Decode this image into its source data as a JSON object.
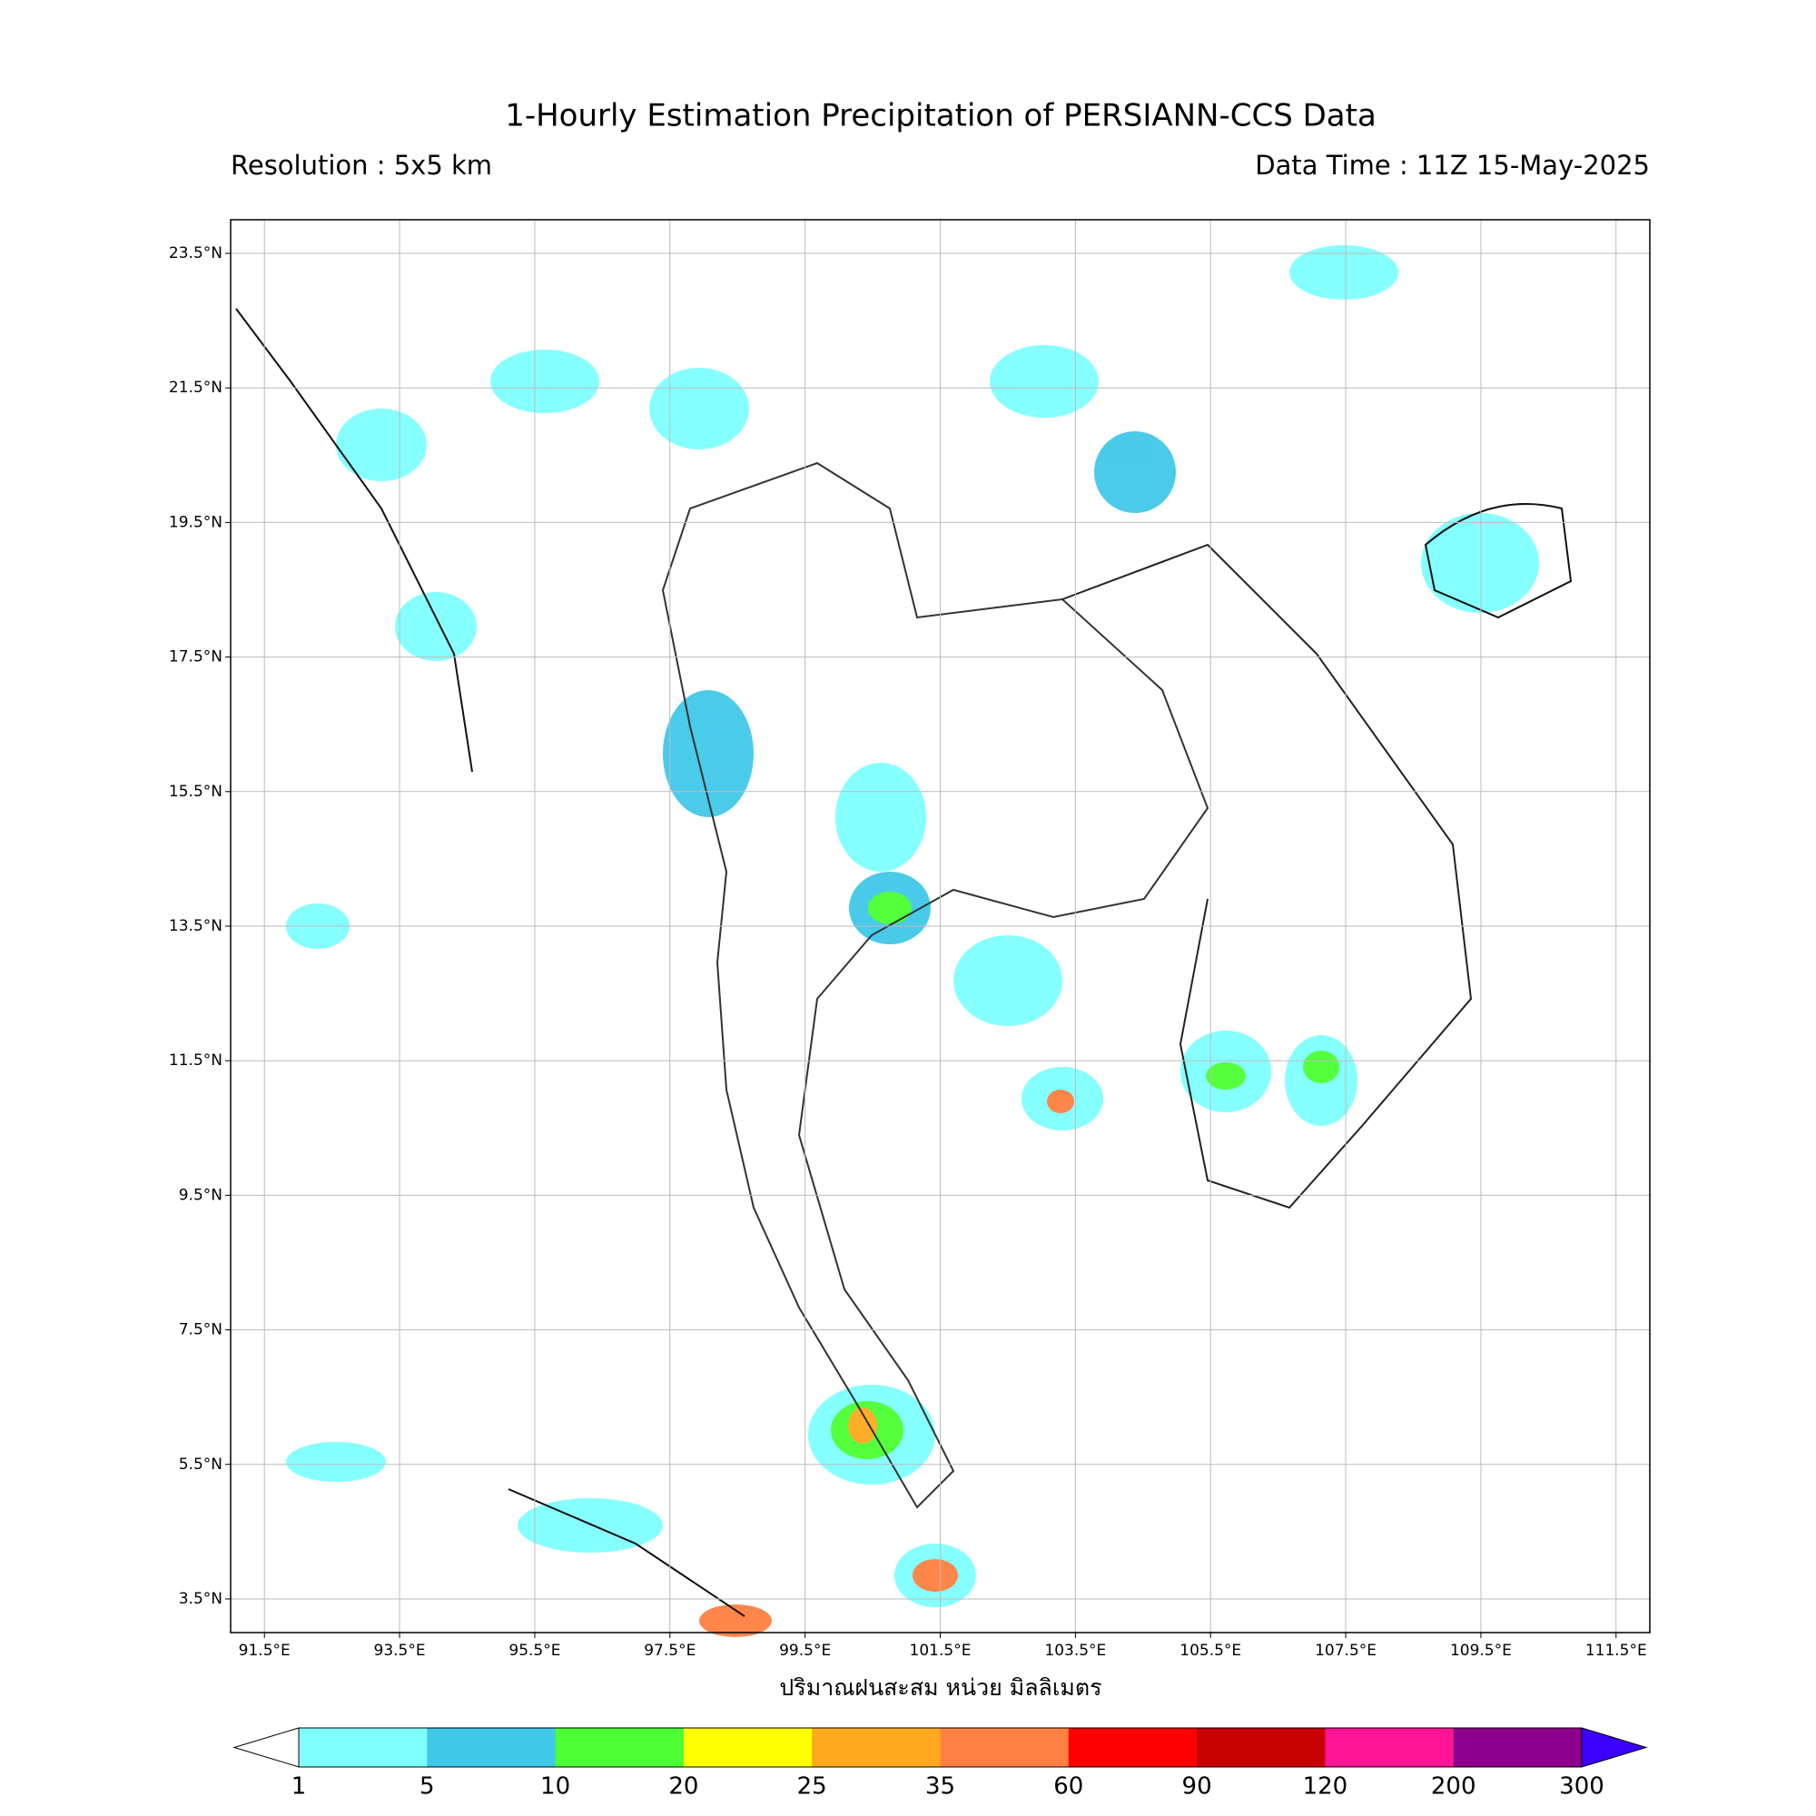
{
  "map": {
    "title": "1-Hourly Estimation Precipitation of PERSIANN-CCS Data",
    "subtitle_left": "Resolution : 5x5 km",
    "subtitle_right": "Data Time : 11Z 15-May-2025",
    "lon_range": [
      91,
      112
    ],
    "lat_range": [
      3,
      24
    ],
    "lon_ticks": [
      {
        "value": 91.5,
        "label": "91.5°E"
      },
      {
        "value": 93.5,
        "label": "93.5°E"
      },
      {
        "value": 95.5,
        "label": "95.5°E"
      },
      {
        "value": 97.5,
        "label": "97.5°E"
      },
      {
        "value": 99.5,
        "label": "99.5°E"
      },
      {
        "value": 101.5,
        "label": "101.5°E"
      },
      {
        "value": 103.5,
        "label": "103.5°E"
      },
      {
        "value": 105.5,
        "label": "105.5°E"
      },
      {
        "value": 107.5,
        "label": "107.5°E"
      },
      {
        "value": 109.5,
        "label": "109.5°E"
      },
      {
        "value": 111.5,
        "label": "111.5°E"
      }
    ],
    "lat_ticks": [
      {
        "value": 23.5,
        "label": "23.5°N"
      },
      {
        "value": 21.5,
        "label": "21.5°N"
      },
      {
        "value": 19.5,
        "label": "19.5°N"
      },
      {
        "value": 17.5,
        "label": "17.5°N"
      },
      {
        "value": 15.5,
        "label": "15.5°N"
      },
      {
        "value": 13.5,
        "label": "13.5°N"
      },
      {
        "value": 11.5,
        "label": "11.5°N"
      },
      {
        "value": 9.5,
        "label": "9.5°N"
      },
      {
        "value": 7.5,
        "label": "7.5°N"
      },
      {
        "value": 5.5,
        "label": "5.5°N"
      },
      {
        "value": 3.5,
        "label": "3.5°N"
      }
    ],
    "grid": true,
    "xlabel": "ปริมาณฝนสะสม หน่วย มิลลิเมตร",
    "colorbar": {
      "levels": [
        1,
        5,
        10,
        20,
        25,
        35,
        60,
        90,
        120,
        200,
        300
      ],
      "colors": [
        "#80ffff",
        "#40c8e8",
        "#4bff32",
        "#ffff00",
        "#ffaa1e",
        "#ff8040",
        "#ff0000",
        "#c80000",
        "#ff1496",
        "#8c008c"
      ],
      "under_color": "#ffffff",
      "over_color": "#3c00ff"
    }
  }
}
